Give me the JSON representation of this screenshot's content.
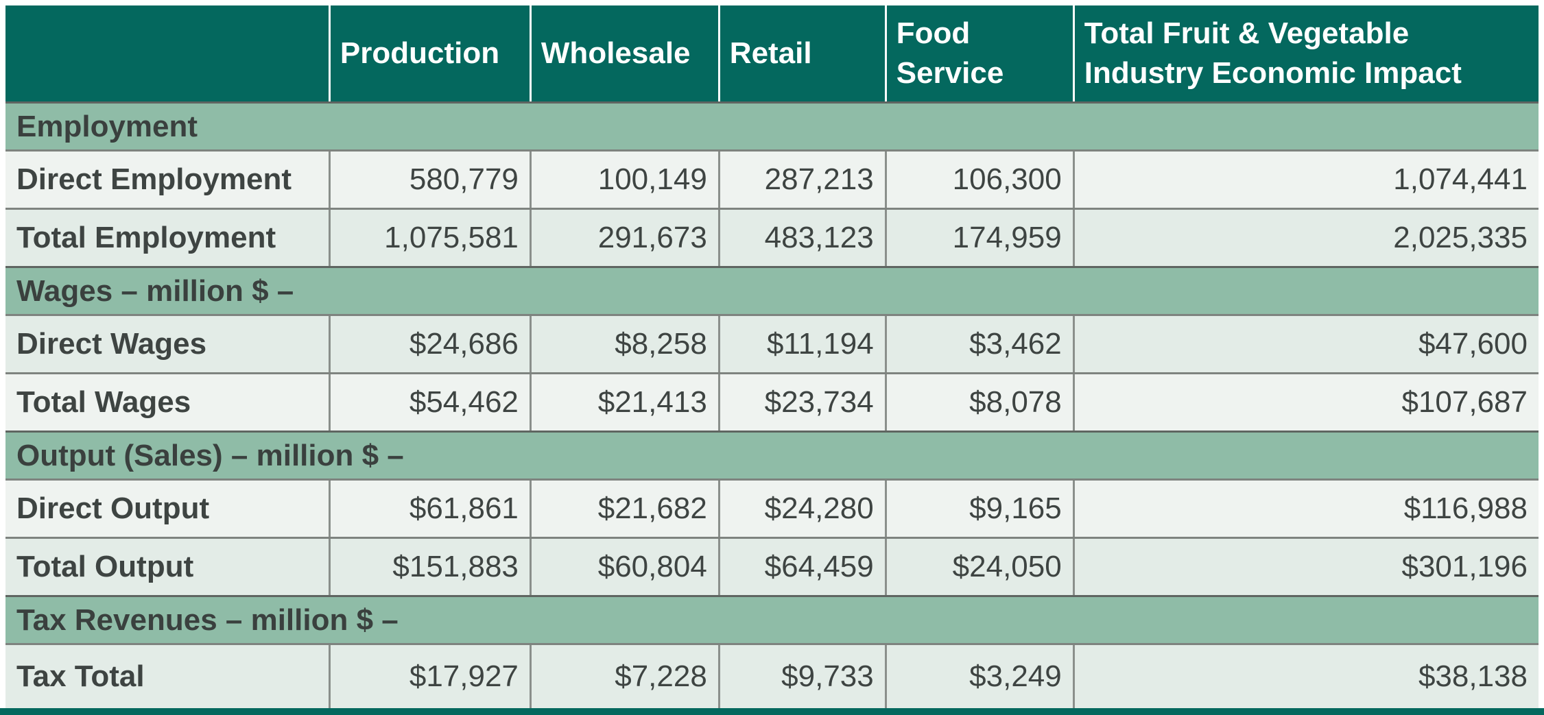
{
  "title": "Total Fruit & Vegetable Industry Economic Impact table",
  "colors": {
    "header_bg": "#04685E",
    "section_bg": "#8FBCA7",
    "row_light": "#EFF3F0",
    "row_green": "#E3ECE7",
    "header_text": "#FFFFFF",
    "body_text": "#3E4442",
    "grid_line": "#7E837F"
  },
  "chart_data": {
    "type": "table",
    "columns": [
      "",
      "Production",
      "Wholesale",
      "Retail",
      "Food Service",
      "Total Fruit & Vegetable Industry Economic Impact"
    ],
    "sections": [
      {
        "label": "Employment",
        "rows": [
          {
            "label": "Direct Employment",
            "values": [
              "580,779",
              "100,149",
              "287,213",
              "106,300",
              "1,074,441"
            ],
            "shade": "light"
          },
          {
            "label": "Total Employment",
            "values": [
              "1,075,581",
              "291,673",
              "483,123",
              "174,959",
              "2,025,335"
            ],
            "shade": "green"
          }
        ]
      },
      {
        "label": "Wages – million $ –",
        "rows": [
          {
            "label": "Direct Wages",
            "values": [
              "$24,686",
              "$8,258",
              "$11,194",
              "$3,462",
              "$47,600"
            ],
            "shade": "green"
          },
          {
            "label": "Total Wages",
            "values": [
              "$54,462",
              "$21,413",
              "$23,734",
              "$8,078",
              "$107,687"
            ],
            "shade": "light"
          }
        ]
      },
      {
        "label": "Output (Sales) – million $ –",
        "rows": [
          {
            "label": "Direct Output",
            "values": [
              "$61,861",
              "$21,682",
              "$24,280",
              "$9,165",
              "$116,988"
            ],
            "shade": "light"
          },
          {
            "label": "Total Output",
            "values": [
              "$151,883",
              "$60,804",
              "$64,459",
              "$24,050",
              "$301,196"
            ],
            "shade": "green"
          }
        ]
      },
      {
        "label": "Tax Revenues – million $ –",
        "rows": [
          {
            "label": "Tax Total",
            "values": [
              "$17,927",
              "$7,228",
              "$9,733",
              "$3,249",
              "$38,138"
            ],
            "shade": "green"
          }
        ]
      }
    ]
  }
}
